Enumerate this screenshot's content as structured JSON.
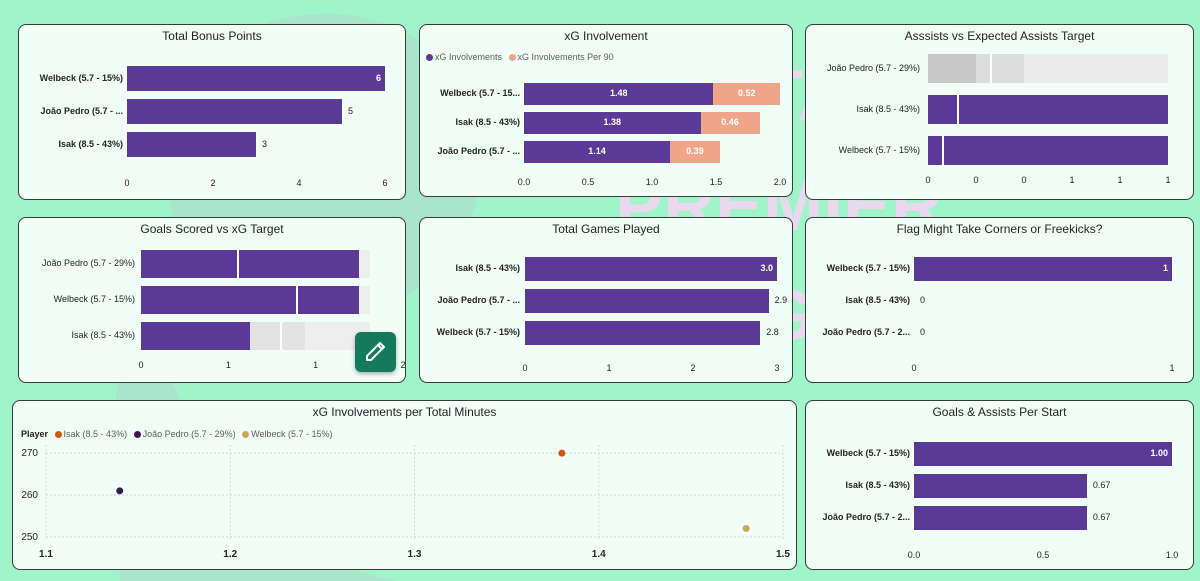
{
  "background_watermark": {
    "lines": [
      "FANTASY",
      "PREMIER",
      "LEAGUE"
    ]
  },
  "colors": {
    "bar": "#5a3a96",
    "bar_secondary": "#f0a48a",
    "panel_bg": "#f0fef7",
    "page_bg": "#9ff5c9",
    "isak": "#d4580c",
    "joao": "#3a1a4a",
    "welbeck": "#c8a560"
  },
  "chart_data": [
    {
      "id": "bonus",
      "type": "bar",
      "title": "Total Bonus Points",
      "categories": [
        "Welbeck (5.7 - 15%)",
        "João Pedro (5.7 - ...",
        "Isak (8.5 - 43%)"
      ],
      "values": [
        6,
        5,
        3
      ],
      "value_labels": [
        "6",
        "5",
        "3"
      ],
      "xlim": [
        0,
        6
      ],
      "xticks": [
        "0",
        "2",
        "4",
        "6"
      ]
    },
    {
      "id": "xg_involvement",
      "type": "bar",
      "stacked": true,
      "title": "xG Involvement",
      "legend": [
        "xG Involvements",
        "xG Involvements Per 90"
      ],
      "categories": [
        "Welbeck (5.7 - 15...",
        "Isak (8.5 - 43%)",
        "João Pedro (5.7 - ..."
      ],
      "series": [
        {
          "name": "xG Involvements",
          "values": [
            1.48,
            1.38,
            1.14
          ],
          "labels": [
            "1.48",
            "1.38",
            "1.14"
          ]
        },
        {
          "name": "xG Involvements Per 90",
          "values": [
            0.52,
            0.46,
            0.39
          ],
          "labels": [
            "0.52",
            "0.46",
            "0.39"
          ]
        }
      ],
      "xlim": [
        0,
        2
      ],
      "xticks": [
        "0.0",
        "0.5",
        "1.0",
        "1.5",
        "2.0"
      ]
    },
    {
      "id": "assists_target",
      "type": "bar",
      "title": "Asssists vs Expected Assists Target",
      "categories": [
        "João Pedro (5.7 - 29%)",
        "Isak (8.5 - 43%)",
        "Welbeck (5.7 - 15%)"
      ],
      "values": [
        0,
        1,
        1
      ],
      "targets": [
        0.26,
        0.12,
        0.06
      ],
      "xlim": [
        0,
        1
      ],
      "xticks": [
        "0",
        "0",
        "0",
        "1",
        "1",
        "1"
      ]
    },
    {
      "id": "goals_target",
      "type": "bar",
      "title": "Goals Scored vs xG Target",
      "categories": [
        "João Pedro (5.7 - 29%)",
        "Welbeck (5.7 - 15%)",
        "Isak (8.5 - 43%)"
      ],
      "values": [
        2,
        2,
        1
      ],
      "targets": [
        0.88,
        1.42,
        1.27
      ],
      "xlim": [
        0,
        2.4
      ],
      "xticks": [
        "0",
        "1",
        "1",
        "2"
      ]
    },
    {
      "id": "games_played",
      "type": "bar",
      "title": "Total Games Played",
      "categories": [
        "Isak (8.5 - 43%)",
        "João Pedro (5.7 - ...",
        "Welbeck (5.7 - 15%)"
      ],
      "values": [
        3.0,
        2.9,
        2.8
      ],
      "value_labels": [
        "3.0",
        "2.9",
        "2.8"
      ],
      "xlim": [
        0,
        3
      ],
      "xticks": [
        "0",
        "1",
        "2",
        "3"
      ]
    },
    {
      "id": "corners_flag",
      "type": "bar",
      "title": "Flag Might Take Corners or Freekicks?",
      "categories": [
        "Welbeck (5.7 - 15%)",
        "Isak (8.5 - 43%)",
        "João Pedro (5.7 - 2..."
      ],
      "values": [
        1,
        0,
        0
      ],
      "value_labels": [
        "1",
        "0",
        "0"
      ],
      "xlim": [
        0,
        1
      ],
      "xticks": [
        "0",
        "1"
      ]
    },
    {
      "id": "xg_per_minutes",
      "type": "scatter",
      "title": "xG Involvements per Total Minutes",
      "legend_title": "Player",
      "series": [
        {
          "name": "Isak (8.5 - 43%)",
          "x": [
            1.38
          ],
          "y": [
            270
          ]
        },
        {
          "name": "João Pedro (5.7 - 29%)",
          "x": [
            1.14
          ],
          "y": [
            261
          ]
        },
        {
          "name": "Welbeck (5.7 - 15%)",
          "x": [
            1.48
          ],
          "y": [
            252
          ]
        }
      ],
      "xlim": [
        1.1,
        1.5
      ],
      "ylim": [
        249,
        271
      ],
      "xticks": [
        "1.1",
        "1.2",
        "1.3",
        "1.4",
        "1.5"
      ],
      "yticks": [
        "270",
        "260",
        "250"
      ]
    },
    {
      "id": "ga_per_start",
      "type": "bar",
      "title": "Goals & Assists Per Start",
      "categories": [
        "Welbeck (5.7 - 15%)",
        "Isak (8.5 - 43%)",
        "João Pedro (5.7 - 2..."
      ],
      "values": [
        1.0,
        0.67,
        0.67
      ],
      "value_labels": [
        "1.00",
        "0.67",
        "0.67"
      ],
      "xlim": [
        0,
        1
      ],
      "xticks": [
        "0.0",
        "0.5",
        "1.0"
      ]
    }
  ]
}
